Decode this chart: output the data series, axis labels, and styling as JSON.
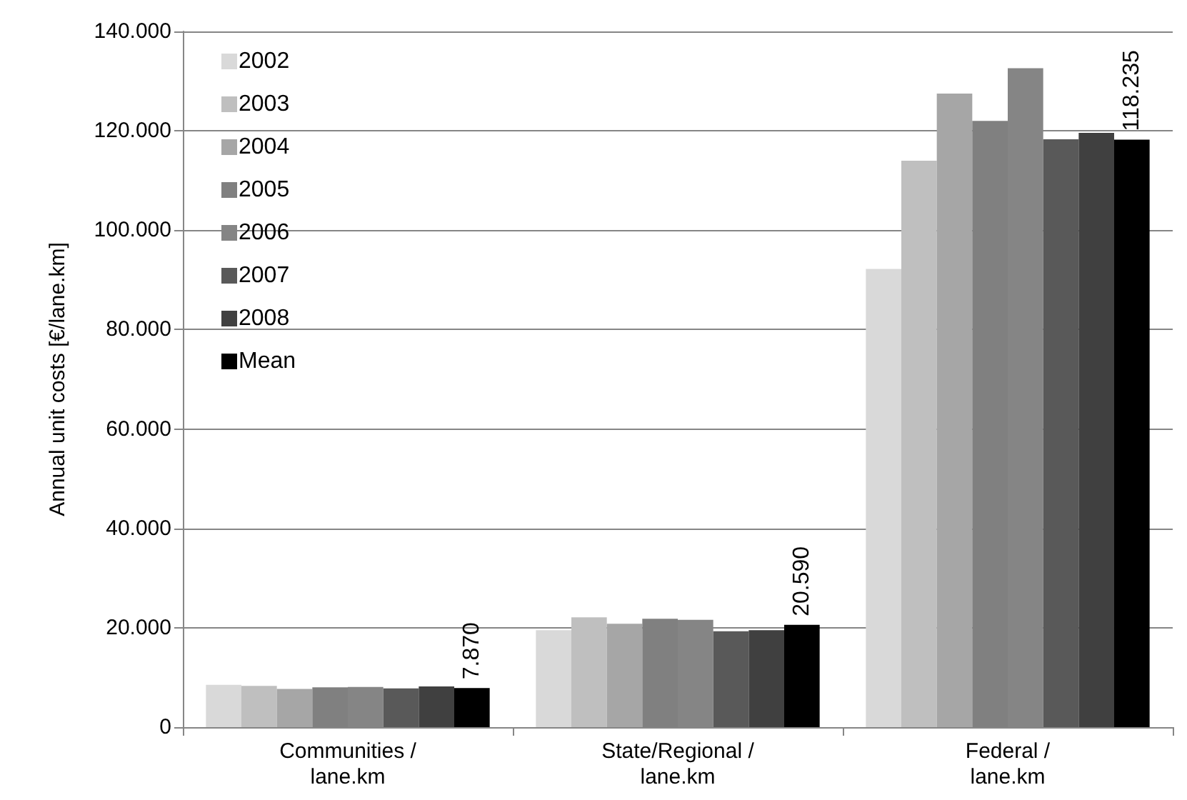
{
  "chart_data": {
    "type": "bar",
    "ylabel": "Annual unit costs [€/lane.km]",
    "categories": [
      "Communities /lane.km",
      "State/Regional /lane.km",
      "Federal /lane.km"
    ],
    "series": [
      {
        "name": "2002",
        "color": "#d9d9d9",
        "values": [
          8500,
          19500,
          92200
        ]
      },
      {
        "name": "2003",
        "color": "#bfbfbf",
        "values": [
          8300,
          22100,
          114000
        ]
      },
      {
        "name": "2004",
        "color": "#a6a6a6",
        "values": [
          7700,
          20800,
          127500
        ]
      },
      {
        "name": "2005",
        "color": "#808080",
        "values": [
          8000,
          21800,
          122000
        ]
      },
      {
        "name": "2006",
        "color": "#858585",
        "values": [
          8100,
          21600,
          132600
        ]
      },
      {
        "name": "2007",
        "color": "#595959",
        "values": [
          7800,
          19300,
          118300
        ]
      },
      {
        "name": "2008",
        "color": "#404040",
        "values": [
          8200,
          19500,
          119600
        ]
      },
      {
        "name": "Mean",
        "color": "#000000",
        "values": [
          7870,
          20590,
          118235
        ],
        "value_labels": [
          "7.870",
          "20.590",
          "118.235"
        ]
      }
    ],
    "ylim": [
      0,
      140000
    ],
    "yticks": [
      0,
      {
        "value": 20000,
        "label": "20.000"
      },
      {
        "value": 40000,
        "label": "40.000"
      },
      {
        "value": 60000,
        "label": "60.000"
      },
      {
        "value": 80000,
        "label": "80.000"
      },
      {
        "value": 100000,
        "label": "100.000"
      },
      {
        "value": 120000,
        "label": "120.000"
      },
      {
        "value": 140000,
        "label": "140.000"
      }
    ],
    "grid": "y",
    "legend": "top left"
  }
}
